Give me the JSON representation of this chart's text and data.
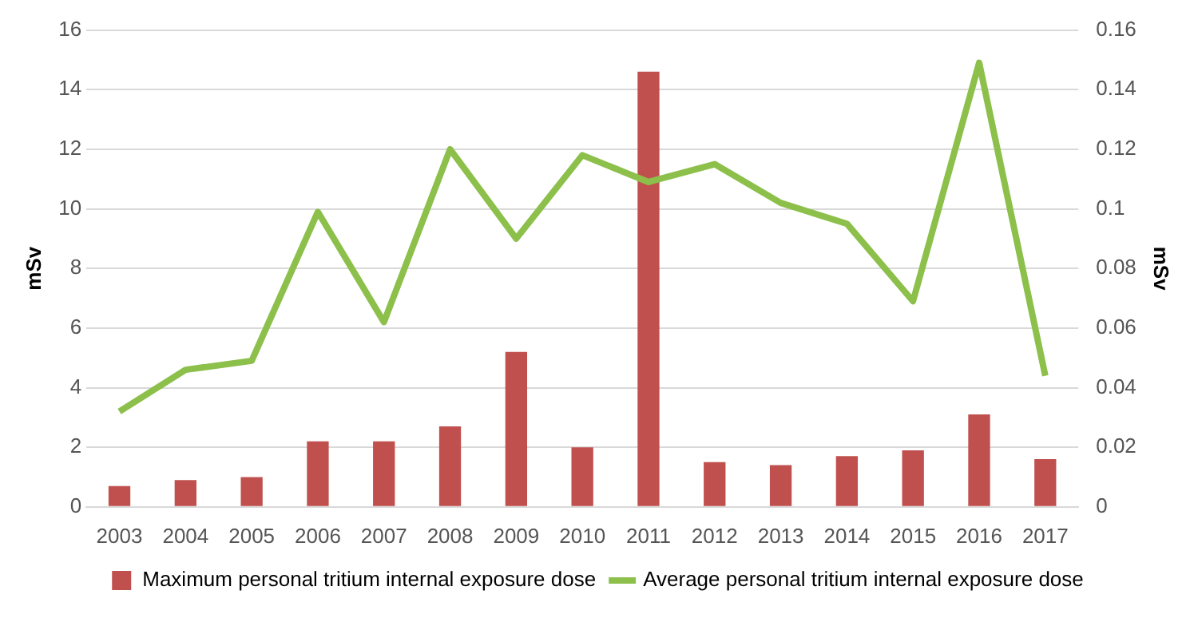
{
  "chart_data": {
    "type": "bar",
    "categories": [
      "2003",
      "2004",
      "2005",
      "2006",
      "2007",
      "2008",
      "2009",
      "2010",
      "2011",
      "2012",
      "2013",
      "2014",
      "2015",
      "2016",
      "2017"
    ],
    "series": [
      {
        "name": "Maximum personal tritium internal exposure dose",
        "color": "#c0504d",
        "values": [
          0.7,
          0.9,
          1.0,
          2.2,
          2.2,
          2.7,
          5.2,
          2.0,
          14.6,
          1.5,
          1.4,
          1.7,
          1.9,
          3.1,
          1.6
        ]
      },
      {
        "name": "Average personal tritium internal exposure dose",
        "type": "line",
        "axis": "y2",
        "color": "#8cc04b",
        "values": [
          0.032,
          0.046,
          0.049,
          0.099,
          0.062,
          0.12,
          0.09,
          0.118,
          0.109,
          0.115,
          0.102,
          0.095,
          0.069,
          0.149,
          0.044
        ]
      }
    ],
    "ylabel": "mSv",
    "y2label": "mSv",
    "ylim": [
      0,
      16
    ],
    "yticks": [
      0,
      2,
      4,
      6,
      8,
      10,
      12,
      14,
      16
    ],
    "y2lim": [
      0,
      0.16
    ],
    "y2ticks": [
      {
        "value": 0,
        "label": "0"
      },
      {
        "value": 0.02,
        "label": "0.02"
      },
      {
        "value": 0.04,
        "label": "0.04"
      },
      {
        "value": 0.06,
        "label": "0.06"
      },
      {
        "value": 0.08,
        "label": "0.08"
      },
      {
        "value": 0.1,
        "label": "0.1"
      },
      {
        "value": 0.12,
        "label": "0.12"
      },
      {
        "value": 0.14,
        "label": "0.14"
      },
      {
        "value": 0.16,
        "label": "0.16"
      }
    ],
    "grid": "y",
    "legend": "bottom",
    "marker": "none"
  }
}
